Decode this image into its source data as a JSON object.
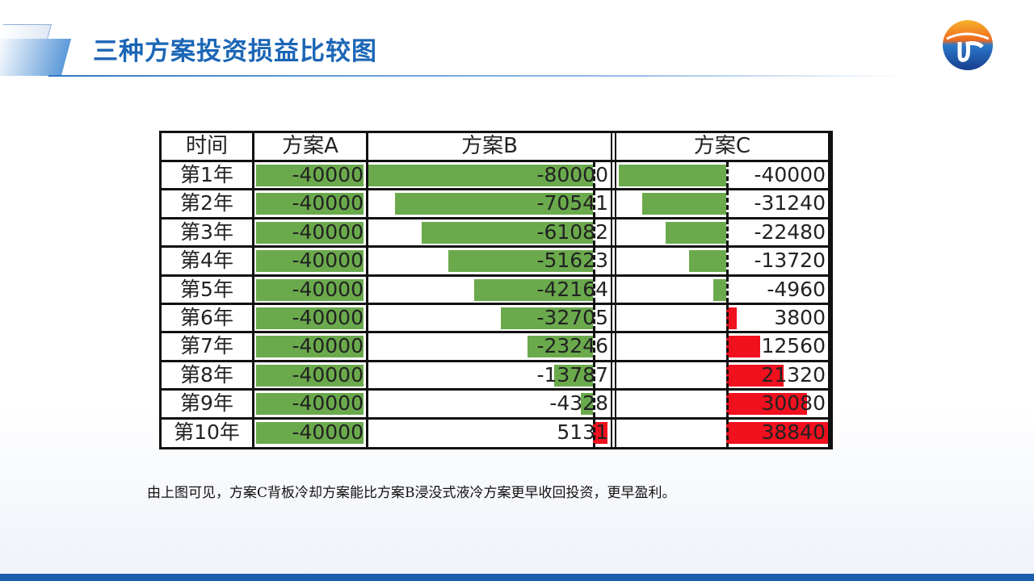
{
  "title": "三种方案投资损益比较图",
  "note": "由上图可见，方案C背板冷却方案能比方案B浸没式液冷方案更早收回投资，更早盈利。",
  "colors": {
    "negative": "#6aaa4c",
    "positive": "#f0101e",
    "title": "#1c66b6",
    "footer": "#1a5fae"
  },
  "chart_data": {
    "type": "table",
    "columns": [
      "时间",
      "方案A",
      "方案B",
      "方案C"
    ],
    "rows": [
      "第1年",
      "第2年",
      "第3年",
      "第4年",
      "第5年",
      "第6年",
      "第7年",
      "第8年",
      "第9年",
      "第10年"
    ],
    "series": [
      {
        "name": "方案A",
        "values": [
          -40000,
          -40000,
          -40000,
          -40000,
          -40000,
          -40000,
          -40000,
          -40000,
          -40000,
          -40000
        ]
      },
      {
        "name": "方案B",
        "values": [
          -80000,
          -70541,
          -61082,
          -51623,
          -42164,
          -32705,
          -23246,
          -13787,
          -4328,
          5131
        ]
      },
      {
        "name": "方案C",
        "values": [
          -40000,
          -31240,
          -22480,
          -13720,
          -4960,
          3800,
          12560,
          21320,
          30080,
          38840
        ]
      }
    ]
  }
}
